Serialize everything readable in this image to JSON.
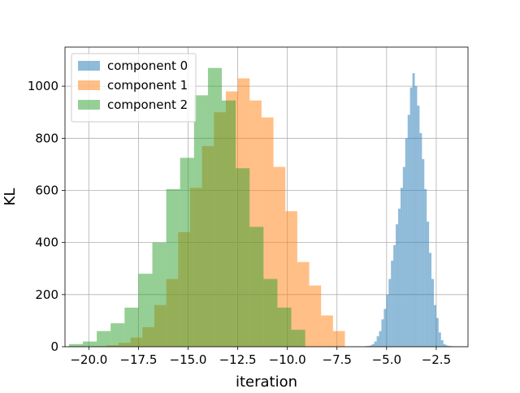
{
  "chart_data": {
    "type": "bar",
    "title": "",
    "xlabel": "iteration",
    "ylabel": "KL",
    "xlim": [
      -21.2,
      -0.9
    ],
    "ylim": [
      0,
      1150
    ],
    "xticks": [
      -20.0,
      -17.5,
      -15.0,
      -12.5,
      -10.0,
      -7.5,
      -5.0,
      -2.5
    ],
    "xtick_labels": [
      "−20.0",
      "−17.5",
      "−15.0",
      "−12.5",
      "−10.0",
      "−7.5",
      "−5.0",
      "−2.5"
    ],
    "yticks": [
      0,
      200,
      400,
      600,
      800,
      1000
    ],
    "ytick_labels": [
      "0",
      "200",
      "400",
      "600",
      "800",
      "1000"
    ],
    "grid": true,
    "legend_position": "top-left",
    "alpha": 0.5,
    "series": [
      {
        "name": "component 0",
        "color": "#1f77b4",
        "bin_edges": [
          -6.1,
          -5.98,
          -5.86,
          -5.74,
          -5.62,
          -5.5,
          -5.38,
          -5.26,
          -5.14,
          -5.02,
          -4.9,
          -4.78,
          -4.66,
          -4.54,
          -4.42,
          -4.3,
          -4.18,
          -4.06,
          -3.94,
          -3.82,
          -3.7,
          -3.58,
          -3.46,
          -3.34,
          -3.22,
          -3.1,
          -2.98,
          -2.86,
          -2.74,
          -2.62,
          -2.5,
          -2.38,
          -2.26,
          -2.14,
          -2.02,
          -1.9,
          -1.78,
          -1.66,
          -1.54,
          -1.42
        ],
        "counts": [
          2,
          3,
          5,
          10,
          20,
          40,
          60,
          105,
          145,
          200,
          260,
          330,
          390,
          470,
          530,
          610,
          690,
          800,
          890,
          995,
          1050,
          1000,
          925,
          820,
          720,
          605,
          480,
          360,
          260,
          160,
          110,
          55,
          25,
          10,
          5,
          3,
          2,
          1,
          1
        ]
      },
      {
        "name": "component 1",
        "color": "#ff7f0e",
        "bin_edges": [
          -19.7,
          -19.1,
          -18.5,
          -17.9,
          -17.3,
          -16.7,
          -16.1,
          -15.5,
          -14.9,
          -14.3,
          -13.7,
          -13.1,
          -12.5,
          -11.9,
          -11.3,
          -10.7,
          -10.1,
          -9.5,
          -8.9,
          -8.3,
          -7.7,
          -7.1
        ],
        "counts": [
          2,
          6,
          15,
          35,
          75,
          160,
          260,
          440,
          610,
          770,
          900,
          980,
          1030,
          945,
          880,
          690,
          520,
          325,
          235,
          120,
          60
        ]
      },
      {
        "name": "component 2",
        "color": "#2ca02c",
        "bin_edges": [
          -21.0,
          -20.3,
          -19.6,
          -18.9,
          -18.2,
          -17.5,
          -16.8,
          -16.1,
          -15.4,
          -14.7,
          -14.0,
          -13.3,
          -12.6,
          -11.9,
          -11.2,
          -10.5,
          -9.8,
          -9.1
        ],
        "counts": [
          10,
          20,
          60,
          90,
          150,
          280,
          400,
          605,
          725,
          965,
          1070,
          945,
          685,
          460,
          260,
          150,
          65
        ]
      }
    ]
  }
}
